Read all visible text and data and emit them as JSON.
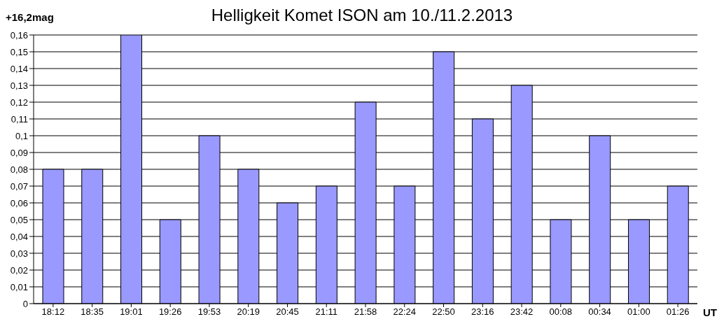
{
  "chart_data": {
    "type": "bar",
    "title": "Helligkeit Komet ISON am 10./11.2.2013",
    "ylabel": "+16,2mag",
    "xlabel": "UT",
    "categories": [
      "18:12",
      "18:35",
      "19:01",
      "19:26",
      "19:53",
      "20:19",
      "20:45",
      "21:11",
      "21:58",
      "22:24",
      "22:50",
      "23:16",
      "23:42",
      "00:08",
      "00:34",
      "01:00",
      "01:26"
    ],
    "values": [
      0.08,
      0.08,
      0.16,
      0.05,
      0.1,
      0.08,
      0.06,
      0.07,
      0.12,
      0.07,
      0.15,
      0.11,
      0.13,
      0.05,
      0.1,
      0.05,
      0.07
    ],
    "color": "#9999ff",
    "ylim": [
      0,
      0.16
    ],
    "yticks": [
      0,
      {
        "value": 0.01,
        "label": "0,01"
      },
      {
        "value": 0.02,
        "label": "0,02"
      },
      {
        "value": 0.03,
        "label": "0,03"
      },
      {
        "value": 0.04,
        "label": "0,04"
      },
      {
        "value": 0.05,
        "label": "0,05"
      },
      {
        "value": 0.06,
        "label": "0,06"
      },
      {
        "value": 0.07,
        "label": "0,07"
      },
      {
        "value": 0.08,
        "label": "0,08"
      },
      {
        "value": 0.09,
        "label": "0,09"
      },
      {
        "value": 0.1,
        "label": "0,1"
      },
      {
        "value": 0.11,
        "label": "0,11"
      },
      {
        "value": 0.12,
        "label": "0,12"
      },
      {
        "value": 0.13,
        "label": "0,13"
      },
      {
        "value": 0.14,
        "label": "0,14"
      },
      {
        "value": 0.15,
        "label": "0,15"
      },
      {
        "value": 0.16,
        "label": "0,16"
      }
    ],
    "grid": "y",
    "legend": false
  }
}
